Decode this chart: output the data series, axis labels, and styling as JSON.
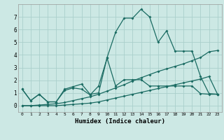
{
  "xlabel": "Humidex (Indice chaleur)",
  "xlim": [
    -0.5,
    23.5
  ],
  "ylim": [
    -0.5,
    8.0
  ],
  "xticks": [
    0,
    1,
    2,
    3,
    4,
    5,
    6,
    7,
    8,
    9,
    10,
    11,
    12,
    13,
    14,
    15,
    16,
    17,
    18,
    19,
    20,
    21,
    22,
    23
  ],
  "yticks": [
    0,
    1,
    2,
    3,
    4,
    5,
    6,
    7
  ],
  "bg_color": "#cce8e4",
  "grid_color": "#aacfcb",
  "line_color": "#1a6b62",
  "line1_x": [
    0,
    1,
    2,
    3,
    4,
    5,
    6,
    7,
    8,
    9,
    10,
    11,
    12,
    13,
    14,
    15,
    16,
    17,
    18,
    19,
    20,
    21,
    22,
    23
  ],
  "line1_y": [
    1.3,
    0.4,
    0.9,
    0.3,
    0.3,
    1.3,
    1.5,
    1.7,
    0.9,
    1.0,
    3.8,
    5.8,
    6.9,
    6.9,
    7.6,
    7.0,
    5.0,
    5.9,
    4.3,
    4.3,
    4.3,
    2.3,
    0.95,
    0.9
  ],
  "line2_x": [
    0,
    1,
    2,
    3,
    4,
    5,
    6,
    7,
    8,
    9,
    10,
    11,
    12,
    13,
    14,
    15,
    16,
    17,
    18,
    19,
    20,
    21,
    22,
    23
  ],
  "line2_y": [
    1.3,
    0.4,
    0.9,
    0.3,
    0.3,
    1.2,
    1.4,
    1.3,
    0.85,
    1.55,
    3.75,
    1.55,
    2.05,
    2.05,
    2.05,
    1.55,
    1.55,
    1.55,
    1.55,
    1.55,
    1.55,
    0.95,
    0.9,
    0.9
  ],
  "line3_x": [
    0,
    1,
    2,
    3,
    4,
    5,
    6,
    7,
    8,
    9,
    10,
    11,
    12,
    13,
    14,
    15,
    16,
    17,
    18,
    19,
    20,
    21,
    22,
    23
  ],
  "line3_y": [
    0.0,
    0.0,
    0.05,
    0.1,
    0.15,
    0.25,
    0.4,
    0.55,
    0.7,
    0.9,
    1.15,
    1.4,
    1.65,
    1.95,
    2.2,
    2.45,
    2.7,
    2.9,
    3.1,
    3.3,
    3.55,
    3.8,
    4.25,
    4.35
  ],
  "line4_x": [
    0,
    1,
    2,
    3,
    4,
    5,
    6,
    7,
    8,
    9,
    10,
    11,
    12,
    13,
    14,
    15,
    16,
    17,
    18,
    19,
    20,
    21,
    22,
    23
  ],
  "line4_y": [
    0.0,
    0.0,
    0.0,
    0.0,
    0.0,
    0.05,
    0.1,
    0.15,
    0.2,
    0.3,
    0.45,
    0.6,
    0.75,
    0.9,
    1.05,
    1.2,
    1.35,
    1.5,
    1.65,
    1.8,
    1.95,
    2.1,
    2.3,
    0.9
  ]
}
